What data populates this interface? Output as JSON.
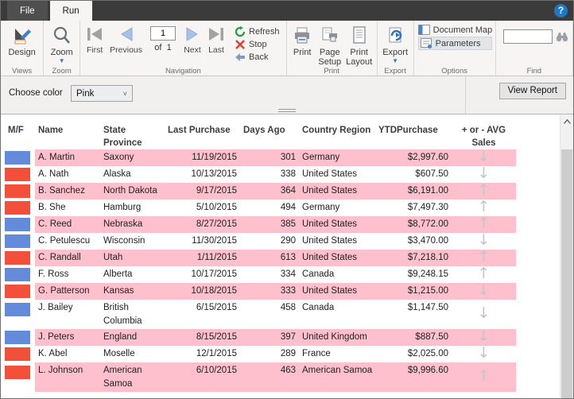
{
  "tabs": {
    "file": "File",
    "run": "Run"
  },
  "help_icon": "?",
  "ribbon": {
    "views": {
      "design": "Design",
      "group_label": "Views"
    },
    "zoom": {
      "zoom": "Zoom",
      "group_label": "Zoom"
    },
    "navigation": {
      "first": "First",
      "previous": "Previous",
      "page_value": "1",
      "of_label": "of",
      "page_total": "1",
      "next": "Next",
      "last": "Last",
      "refresh": "Refresh",
      "stop": "Stop",
      "back": "Back",
      "group_label": "Navigation"
    },
    "print": {
      "print": "Print",
      "page_setup": "Page Setup",
      "print_layout": "Print Layout",
      "group_label": "Print"
    },
    "export": {
      "export": "Export",
      "group_label": "Export"
    },
    "options": {
      "document_map": "Document Map",
      "parameters": "Parameters",
      "group_label": "Options"
    },
    "find": {
      "value": "",
      "group_label": "Find"
    }
  },
  "parameter_bar": {
    "label": "Choose color",
    "value": "Pink",
    "view_report": "View Report"
  },
  "table": {
    "headers": [
      "M/F",
      "Name",
      "State Province",
      "Last Purchase",
      "Days Ago",
      "Country Region",
      "YTDPurchase",
      "+ or - AVG Sales"
    ],
    "rows": [
      {
        "mf_color": "blue",
        "name": "A. Martin",
        "state": "Saxony",
        "last_purchase": "11/19/2015",
        "days_ago": "301",
        "country": "Germany",
        "ytd": "$2,997.60",
        "trend": "down",
        "band": "pink",
        "tall": false
      },
      {
        "mf_color": "red",
        "name": "A. Nath",
        "state": "Alaska",
        "last_purchase": "10/13/2015",
        "days_ago": "338",
        "country": "United States",
        "ytd": "$607.50",
        "trend": "down",
        "band": "white",
        "tall": false
      },
      {
        "mf_color": "red",
        "name": "B. Sanchez",
        "state": "North Dakota",
        "last_purchase": "9/17/2015",
        "days_ago": "364",
        "country": "United States",
        "ytd": "$6,191.00",
        "trend": "up",
        "band": "pink",
        "tall": false
      },
      {
        "mf_color": "red",
        "name": "B. She",
        "state": "Hamburg",
        "last_purchase": "5/10/2015",
        "days_ago": "494",
        "country": "Germany",
        "ytd": "$7,497.30",
        "trend": "up",
        "band": "white",
        "tall": false
      },
      {
        "mf_color": "blue",
        "name": "C. Reed",
        "state": "Nebraska",
        "last_purchase": "8/27/2015",
        "days_ago": "385",
        "country": "United States",
        "ytd": "$8,772.00",
        "trend": "up",
        "band": "pink",
        "tall": false
      },
      {
        "mf_color": "blue",
        "name": "C. Petulescu",
        "state": "Wisconsin",
        "last_purchase": "11/30/2015",
        "days_ago": "290",
        "country": "United States",
        "ytd": "$3,470.00",
        "trend": "down",
        "band": "white",
        "tall": false
      },
      {
        "mf_color": "red",
        "name": "C. Randall",
        "state": "Utah",
        "last_purchase": "1/11/2015",
        "days_ago": "613",
        "country": "United States",
        "ytd": "$7,218.10",
        "trend": "up",
        "band": "pink",
        "tall": false
      },
      {
        "mf_color": "blue",
        "name": "F. Ross",
        "state": "Alberta",
        "last_purchase": "10/17/2015",
        "days_ago": "334",
        "country": "Canada",
        "ytd": "$9,248.15",
        "trend": "up",
        "band": "white",
        "tall": false
      },
      {
        "mf_color": "red",
        "name": "G. Patterson",
        "state": "Kansas",
        "last_purchase": "10/18/2015",
        "days_ago": "333",
        "country": "United States",
        "ytd": "$1,215.00",
        "trend": "down",
        "band": "pink",
        "tall": false
      },
      {
        "mf_color": "blue",
        "name": "J. Bailey",
        "state": "British Columbia",
        "last_purchase": "6/15/2015",
        "days_ago": "458",
        "country": "Canada",
        "ytd": "$1,147.50",
        "trend": "down",
        "band": "white",
        "tall": true
      },
      {
        "mf_color": "blue",
        "name": "J. Peters",
        "state": "England",
        "last_purchase": "8/15/2015",
        "days_ago": "397",
        "country": "United Kingdom",
        "ytd": "$887.50",
        "trend": "down",
        "band": "pink",
        "tall": false
      },
      {
        "mf_color": "red",
        "name": "K. Abel",
        "state": "Moselle",
        "last_purchase": "12/1/2015",
        "days_ago": "289",
        "country": "France",
        "ytd": "$2,025.00",
        "trend": "down",
        "band": "white",
        "tall": false
      },
      {
        "mf_color": "red",
        "name": "L. Johnson",
        "state": "American Samoa",
        "last_purchase": "6/10/2015",
        "days_ago": "463",
        "country": "American Samoa",
        "ytd": "$9,996.60",
        "trend": "up",
        "band": "pink",
        "tall": true
      }
    ]
  },
  "colors": {
    "blue": "#638bda",
    "red": "#f2503a",
    "pink_row": "#ffc0cd",
    "arrow_gray": "#c2c6ca",
    "refresh_green": "#259b3e",
    "stop_red": "#e23e2f",
    "nav_blue": "#a9c0e8"
  }
}
